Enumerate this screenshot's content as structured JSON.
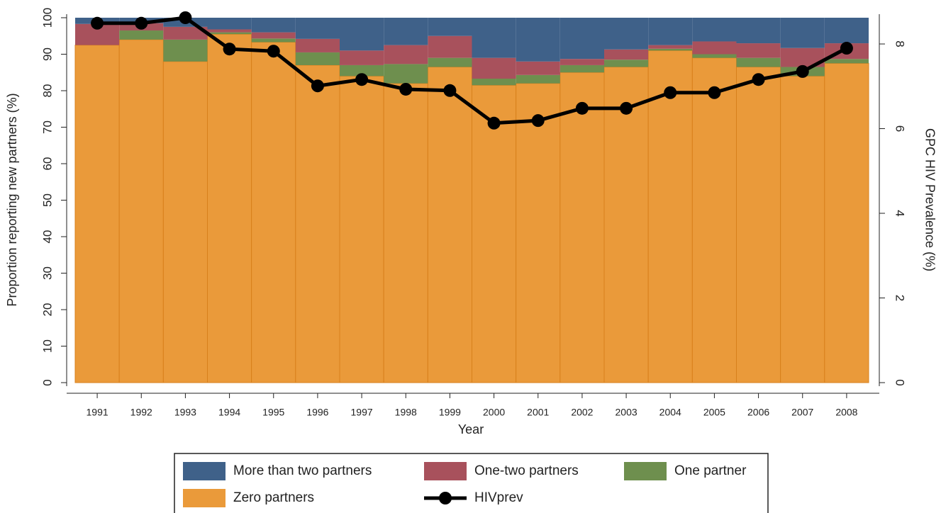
{
  "chart_data": {
    "type": "bar",
    "stacked": true,
    "x_label": "Year",
    "y_label": "Proportion reporting new partners (%)",
    "y2_label": "GPC HIV Prevalence (%)",
    "categories": [
      "1991",
      "1992",
      "1993",
      "1994",
      "1995",
      "1996",
      "1997",
      "1998",
      "1999",
      "2000",
      "2001",
      "2002",
      "2003",
      "2004",
      "2005",
      "2006",
      "2007",
      "2008"
    ],
    "series": [
      {
        "name": "Zero partners",
        "color": "#ea9a3a",
        "values": [
          92.5,
          94,
          88,
          95.5,
          93.3,
          87,
          84,
          82,
          86.5,
          81.5,
          82,
          85,
          86.5,
          91,
          89,
          86.5,
          84,
          87.5
        ]
      },
      {
        "name": "One partner",
        "color": "#6e8f4e",
        "values": [
          0,
          2.5,
          6,
          0.5,
          1,
          3.5,
          3,
          5.3,
          2.5,
          1.8,
          2.3,
          2,
          2,
          0.5,
          1,
          2.5,
          2.5,
          1.2
        ]
      },
      {
        "name": "One-two partners",
        "color": "#a8515c",
        "values": [
          5.8,
          2,
          3.5,
          0.8,
          1.7,
          3.7,
          4,
          5.2,
          6,
          5.7,
          3.7,
          1.7,
          2.8,
          1,
          3.5,
          4,
          5.2,
          4.3
        ]
      },
      {
        "name": "More than two partners",
        "color": "#3f6189",
        "values": [
          1.7,
          1.5,
          2.5,
          3.2,
          4,
          5.8,
          9,
          7.5,
          5,
          11,
          12,
          11.3,
          8.7,
          7.5,
          6.5,
          7,
          8.3,
          7
        ]
      },
      {
        "name": "HIVprev",
        "color": "#000000",
        "type": "line",
        "axis": "y2",
        "values": [
          8.49,
          8.49,
          8.62,
          7.88,
          7.83,
          7.01,
          7.16,
          6.93,
          6.9,
          6.13,
          6.19,
          6.48,
          6.48,
          6.85,
          6.85,
          7.16,
          7.35,
          7.9
        ]
      }
    ],
    "ylim": [
      0,
      100
    ],
    "yticks": [
      0,
      10,
      20,
      30,
      40,
      50,
      60,
      70,
      80,
      90,
      100
    ],
    "y2lim": [
      0,
      8.62
    ],
    "y2ticks": [
      0,
      2,
      4,
      6,
      8
    ],
    "legend": "bottom"
  }
}
